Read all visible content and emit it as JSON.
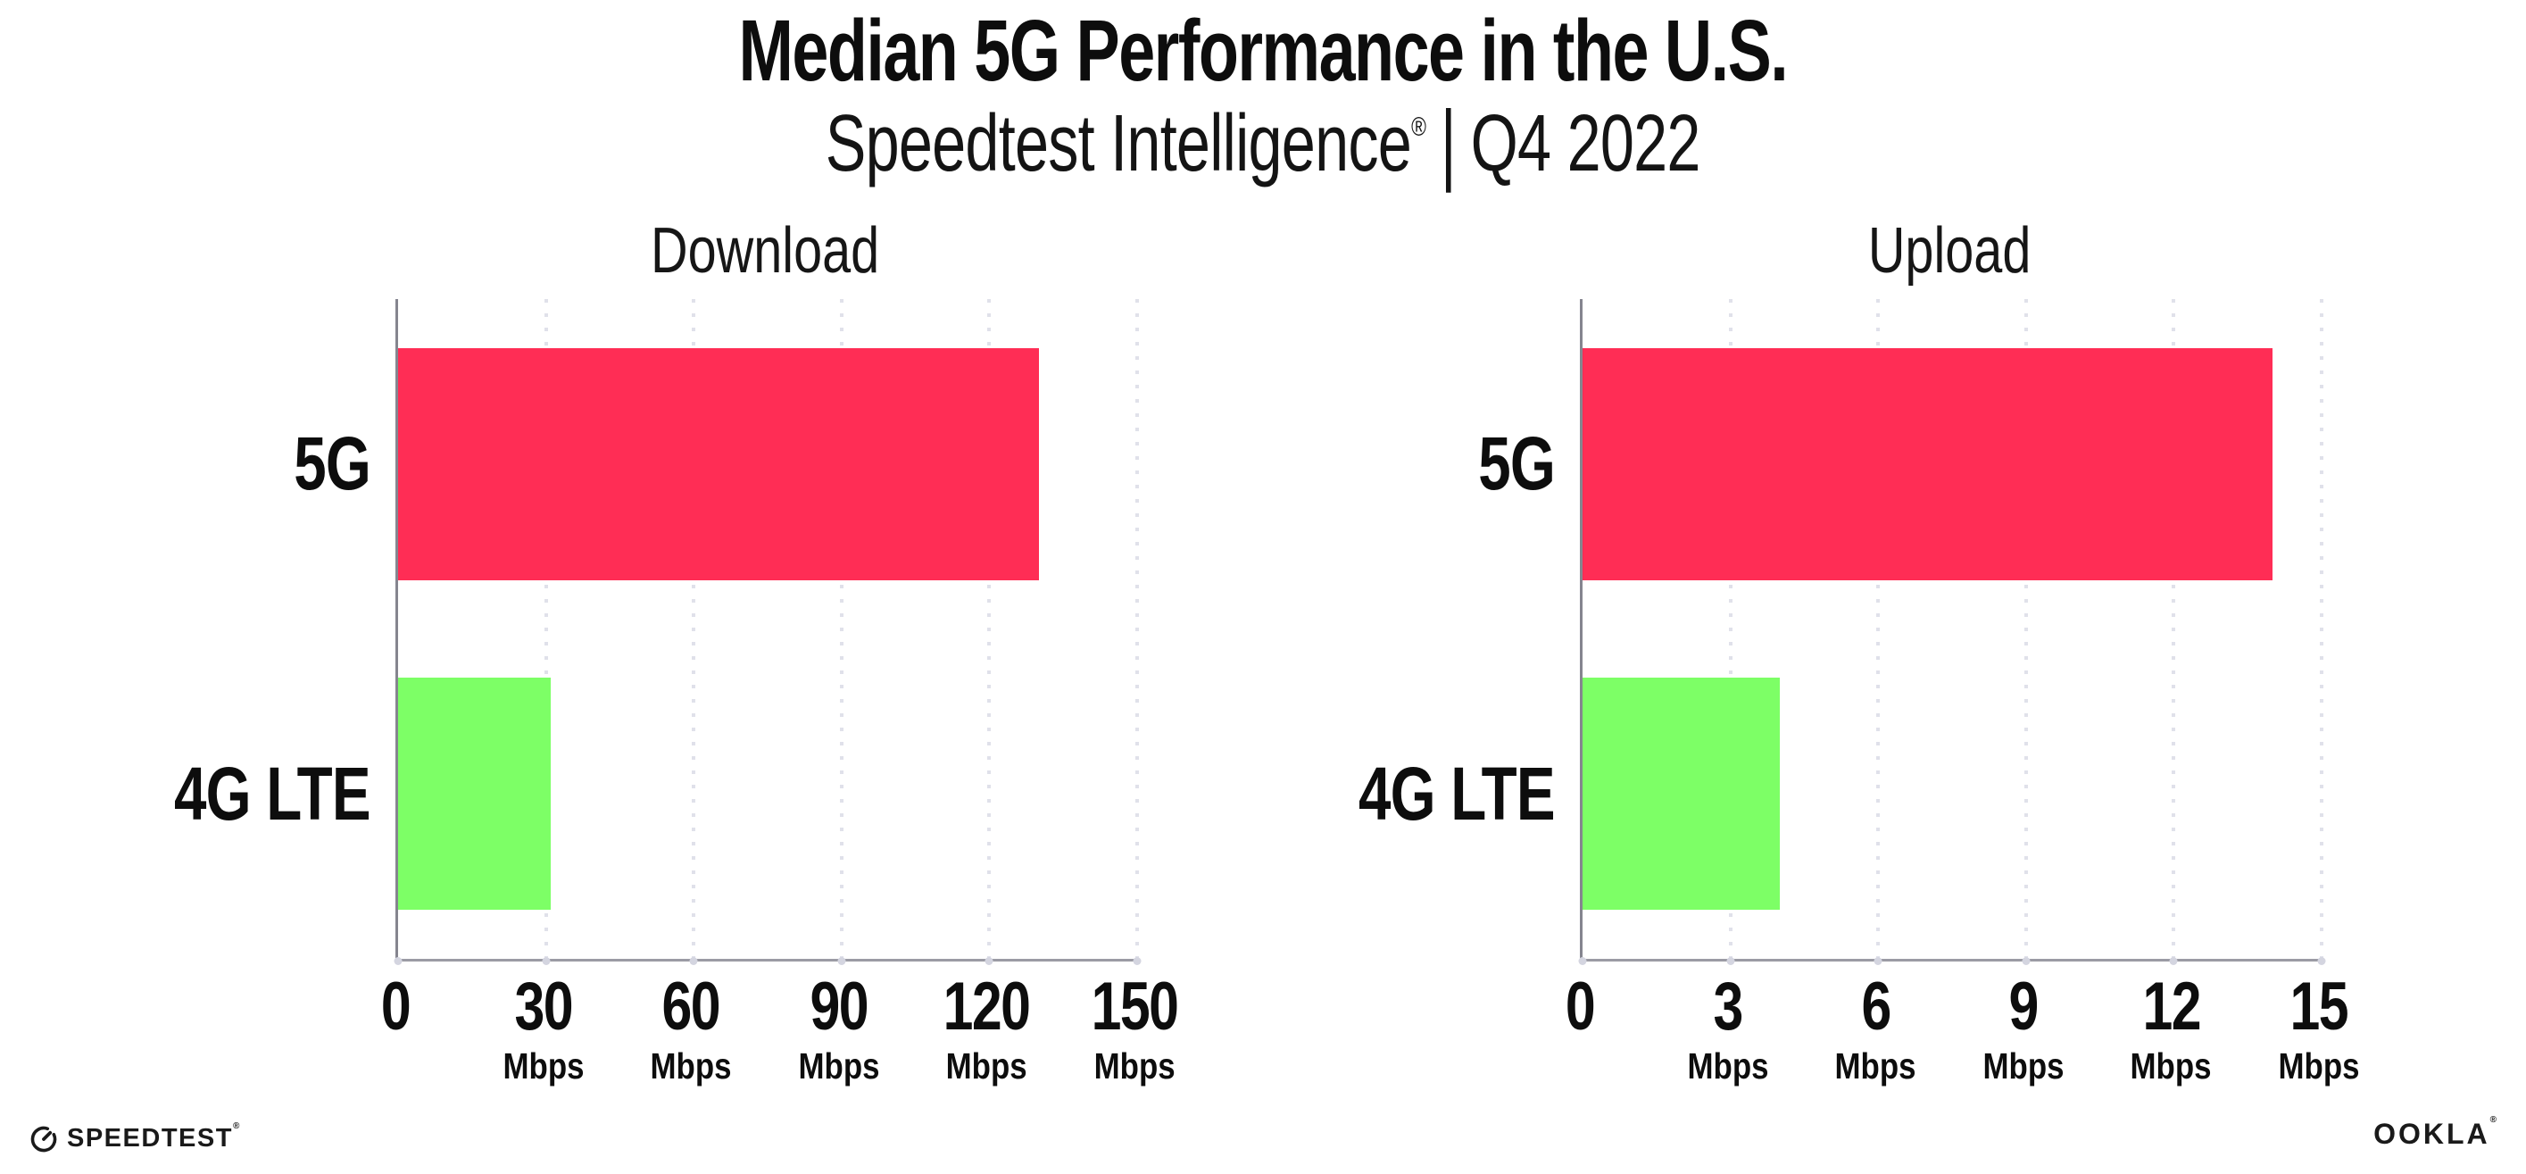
{
  "header": {
    "title": "Median 5G Performance in the U.S.",
    "subtitle_brand": "Speedtest Intelligence",
    "subtitle_reg": "®",
    "subtitle_sep": "|",
    "subtitle_period": "Q4 2022"
  },
  "chart_data": [
    {
      "type": "bar",
      "orientation": "horizontal",
      "title": "Download",
      "categories": [
        "5G",
        "4G LTE"
      ],
      "values": [
        130,
        31
      ],
      "value_unit": "Mbps",
      "xlim": [
        0,
        150
      ],
      "xtick_step": 30,
      "xticks": [
        {
          "label": "0",
          "unit": ""
        },
        {
          "label": "30",
          "unit": "Mbps"
        },
        {
          "label": "60",
          "unit": "Mbps"
        },
        {
          "label": "90",
          "unit": "Mbps"
        },
        {
          "label": "120",
          "unit": "Mbps"
        },
        {
          "label": "150",
          "unit": "Mbps"
        }
      ],
      "bar_colors": [
        "#ff2d55",
        "#7dff66"
      ],
      "grid": "vertical-dotted",
      "legend": "none"
    },
    {
      "type": "bar",
      "orientation": "horizontal",
      "title": "Upload",
      "categories": [
        "5G",
        "4G LTE"
      ],
      "values": [
        14,
        4
      ],
      "value_unit": "Mbps",
      "xlim": [
        0,
        15
      ],
      "xtick_step": 3,
      "xticks": [
        {
          "label": "0",
          "unit": ""
        },
        {
          "label": "3",
          "unit": "Mbps"
        },
        {
          "label": "6",
          "unit": "Mbps"
        },
        {
          "label": "9",
          "unit": "Mbps"
        },
        {
          "label": "12",
          "unit": "Mbps"
        },
        {
          "label": "15",
          "unit": "Mbps"
        }
      ],
      "bar_colors": [
        "#ff2d55",
        "#7dff66"
      ],
      "grid": "vertical-dotted",
      "legend": "none"
    }
  ],
  "footer": {
    "speedtest_wordmark": "SPEEDTEST",
    "speedtest_reg": "®",
    "ookla_wordmark": "OOKLA",
    "ookla_reg": "®"
  },
  "colors": {
    "bar_5g": "#ff2d55",
    "bar_4g_lte": "#7dff66",
    "axis_line": "#8f8f99",
    "grid_dots": "#e0e1ea",
    "text": "#0d0d0d",
    "background": "#ffffff"
  }
}
